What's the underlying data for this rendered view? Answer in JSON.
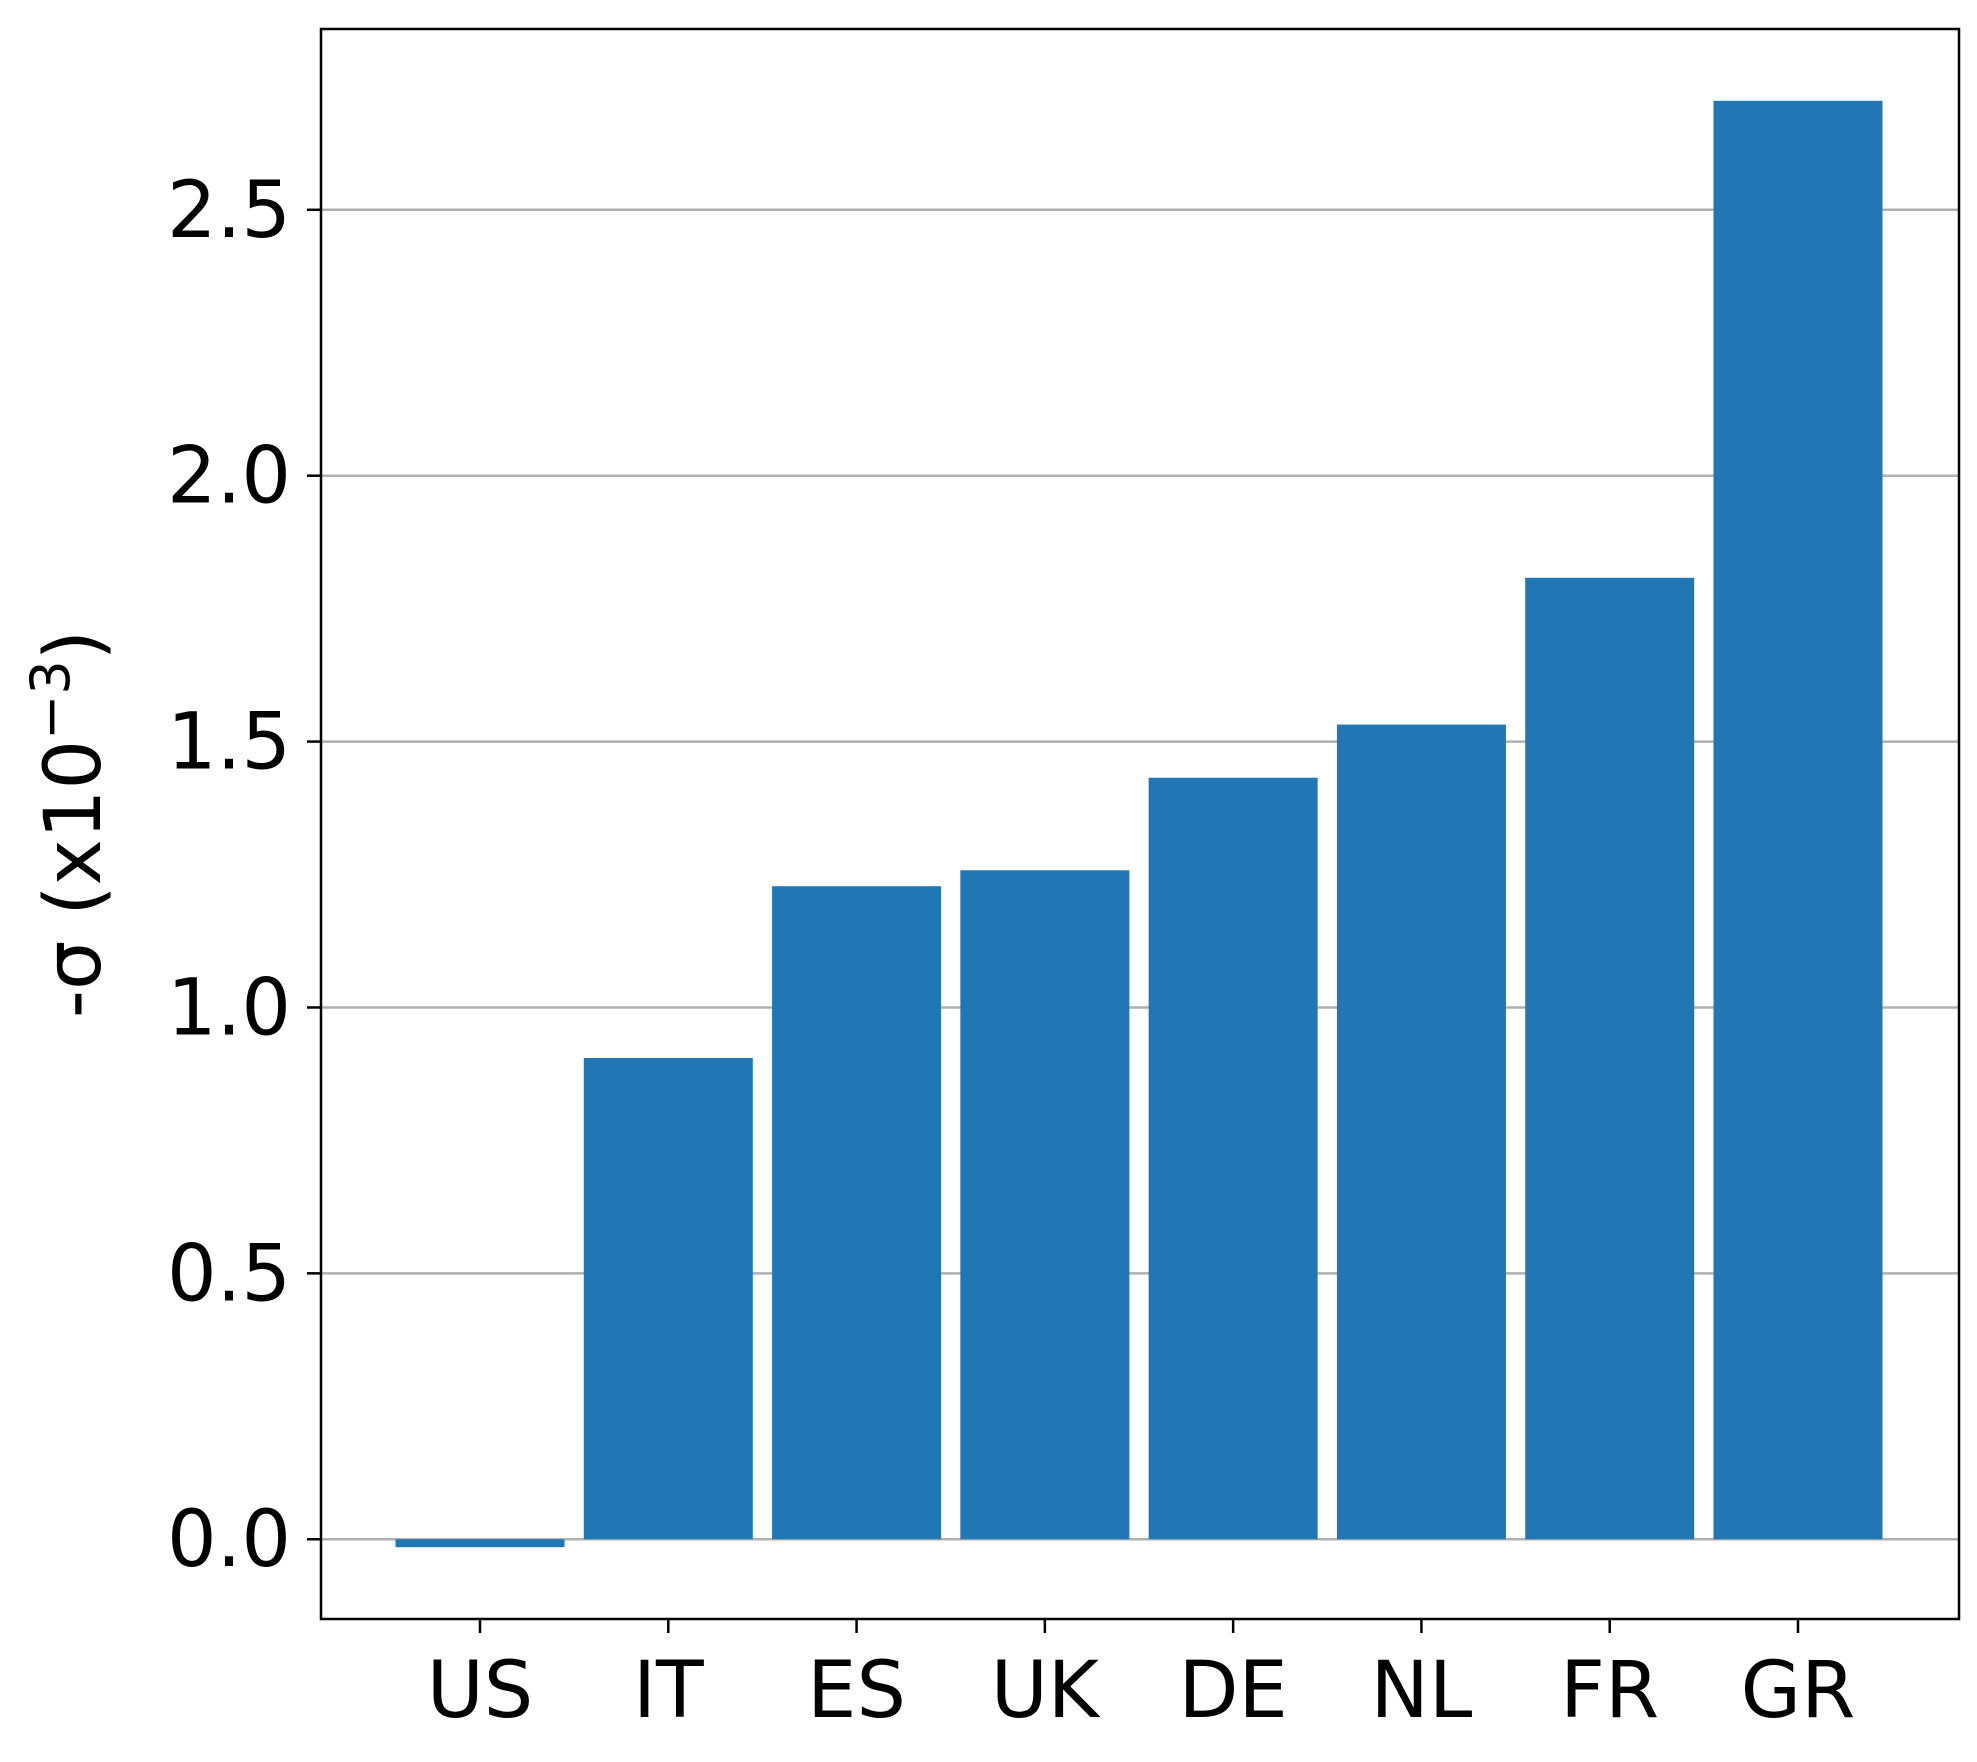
{
  "chart_data": {
    "type": "bar",
    "categories": [
      "US",
      "IT",
      "ES",
      "UK",
      "DE",
      "NL",
      "FR",
      "GR"
    ],
    "values": [
      -0.015,
      0.905,
      1.228,
      1.258,
      1.432,
      1.532,
      1.808,
      2.705
    ],
    "ylabel": {
      "main": "-σ (x10",
      "sup": "−3",
      "close": ")"
    },
    "yticks": [
      0.0,
      0.5,
      1.0,
      1.5,
      2.0,
      2.5
    ],
    "ytick_labels": [
      "0.0",
      "0.5",
      "1.0",
      "1.5",
      "2.0",
      "2.5"
    ],
    "ylim": [
      -0.15,
      2.84
    ],
    "grid": "y",
    "bar_color": "#2077b4"
  }
}
